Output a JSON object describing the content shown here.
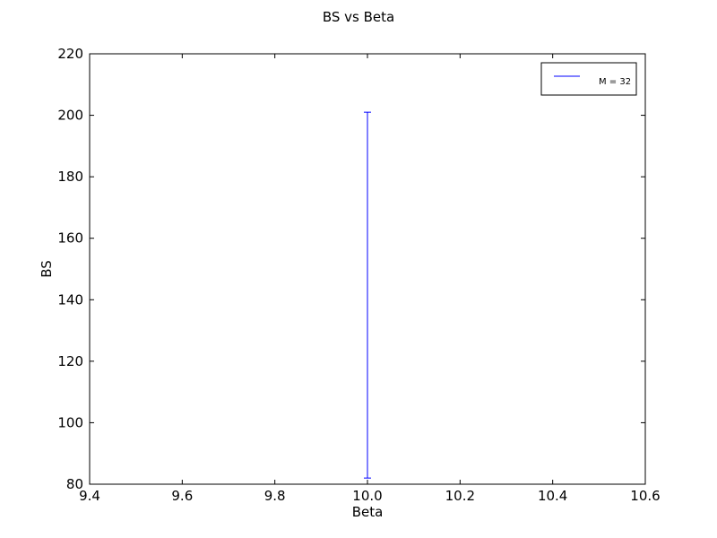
{
  "chart_data": {
    "type": "errorbar",
    "title": "BS vs Beta",
    "xlabel": "Beta",
    "ylabel": "BS",
    "xlim": [
      9.4,
      10.6
    ],
    "ylim": [
      80,
      220
    ],
    "xticks": [
      "9.4",
      "9.6",
      "9.8",
      "10.0",
      "10.2",
      "10.4",
      "10.6"
    ],
    "yticks": [
      "80",
      "100",
      "120",
      "140",
      "160",
      "180",
      "200",
      "220"
    ],
    "grid": false,
    "legend_position": "top-right",
    "series": [
      {
        "name": "M = 32",
        "color": "#0000ff",
        "points": [
          {
            "x": 10.0,
            "y_low": 82,
            "y_high": 201
          }
        ]
      }
    ]
  }
}
